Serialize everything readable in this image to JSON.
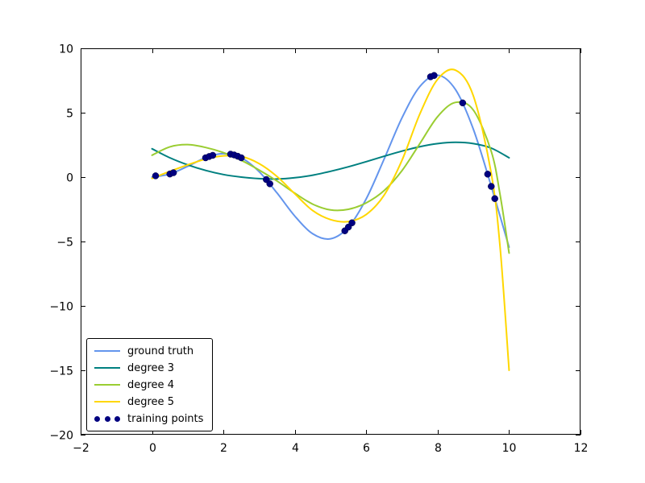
{
  "figure": {
    "background_color": "#ffffff",
    "axes_frame_color": "#000000",
    "tick_label_color": "#000000"
  },
  "chart_data": {
    "type": "line",
    "title": "",
    "xlabel": "",
    "ylabel": "",
    "xlim": [
      -2,
      12
    ],
    "ylim": [
      -20,
      10
    ],
    "x_ticks": [
      -2,
      0,
      2,
      4,
      6,
      8,
      10,
      12
    ],
    "y_ticks": [
      -20,
      -15,
      -10,
      -5,
      0,
      5,
      10
    ],
    "grid": false,
    "legend_position": "lower left",
    "series": [
      {
        "name": "ground truth",
        "type": "line",
        "color": "#6495ed",
        "line_width": 2,
        "x": [
          0,
          0.5,
          1,
          1.5,
          2,
          2.5,
          3,
          3.5,
          4,
          4.5,
          5,
          5.5,
          6,
          6.5,
          7,
          7.5,
          8,
          8.5,
          9,
          9.5,
          10
        ],
        "y": [
          0,
          0.24,
          0.84,
          1.5,
          1.82,
          1.5,
          0.42,
          -1.23,
          -3.03,
          -4.4,
          -4.79,
          -3.88,
          -1.68,
          1.4,
          4.6,
          7.03,
          7.91,
          6.79,
          3.71,
          -0.71,
          -5.44
        ]
      },
      {
        "name": "degree 3",
        "type": "line",
        "color": "#008080",
        "line_width": 2,
        "x": [
          0,
          0.5,
          1,
          1.5,
          2,
          2.5,
          3,
          3.5,
          4,
          4.5,
          5,
          5.5,
          6,
          6.5,
          7,
          7.5,
          8,
          8.5,
          9,
          9.5,
          10
        ],
        "y": [
          2.2,
          1.5,
          0.95,
          0.52,
          0.2,
          0.0,
          -0.12,
          -0.15,
          -0.05,
          0.15,
          0.45,
          0.8,
          1.2,
          1.62,
          2.02,
          2.36,
          2.6,
          2.7,
          2.6,
          2.25,
          1.5
        ]
      },
      {
        "name": "degree 4",
        "type": "line",
        "color": "#9acd32",
        "line_width": 2,
        "x": [
          0,
          0.5,
          1,
          1.5,
          2,
          2.5,
          3,
          3.5,
          4,
          4.5,
          5,
          5.5,
          6,
          6.5,
          7,
          7.5,
          8,
          8.5,
          9,
          9.5,
          9.75,
          10
        ],
        "y": [
          1.7,
          2.35,
          2.52,
          2.3,
          1.9,
          1.3,
          0.55,
          -0.3,
          -1.25,
          -2.1,
          -2.55,
          -2.5,
          -2.0,
          -1.05,
          0.5,
          2.6,
          4.7,
          5.8,
          5.2,
          2.0,
          -1.4,
          -5.9
        ]
      },
      {
        "name": "degree 5",
        "type": "line",
        "color": "#ffd700",
        "line_width": 2,
        "x": [
          0,
          0.5,
          1,
          1.5,
          2,
          2.5,
          3,
          3.5,
          4,
          4.5,
          5,
          5.5,
          6,
          6.5,
          7,
          7.5,
          8,
          8.5,
          9,
          9.5,
          9.75,
          10
        ],
        "y": [
          -0.1,
          0.45,
          0.95,
          1.4,
          1.65,
          1.6,
          1.05,
          0.05,
          -1.3,
          -2.6,
          -3.3,
          -3.45,
          -2.9,
          -1.4,
          1.3,
          4.9,
          7.6,
          8.3,
          6.3,
          0.3,
          -5.5,
          -15
        ]
      },
      {
        "name": "training points",
        "type": "scatter",
        "color": "#000080",
        "marker_radius": 4,
        "x": [
          0.1,
          0.5,
          0.6,
          1.5,
          1.6,
          1.7,
          2.2,
          2.3,
          2.4,
          2.5,
          3.2,
          3.3,
          5.4,
          5.5,
          5.6,
          7.8,
          7.9,
          8.7,
          9.4,
          9.5,
          9.6
        ],
        "y": [
          0.1,
          0.24,
          0.34,
          1.5,
          1.6,
          1.69,
          1.78,
          1.72,
          1.62,
          1.5,
          -0.19,
          -0.52,
          -4.17,
          -3.88,
          -3.55,
          7.79,
          7.89,
          5.76,
          0.23,
          -0.72,
          -1.67
        ]
      }
    ]
  }
}
